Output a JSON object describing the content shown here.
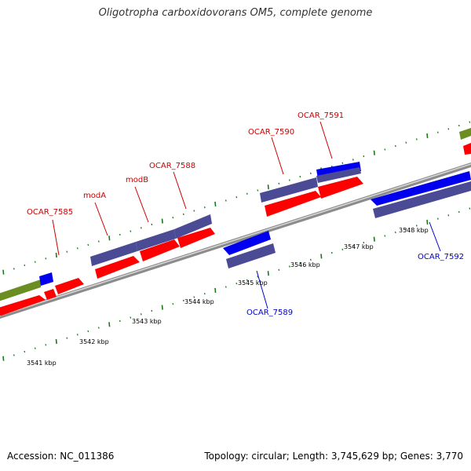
{
  "title": "Oligotropha carboxidovorans OM5, complete genome",
  "footer": {
    "accession": "Accession: NC_011386",
    "summary": "Topology: circular; Length: 3,745,629 bp; Genes: 3,770"
  },
  "colors": {
    "background": "#ffffff",
    "forward_label": "#cc0000",
    "reverse_label": "#0000cc",
    "backbone": "#8c8c8c",
    "ruler_tick": "#1a7a1a",
    "cds": "#ff0000",
    "gene_forward": "#4a4a95",
    "gene_reverse": "#4a4a95",
    "rna_blue": "#0000ee",
    "olive": "#6b8e23"
  },
  "ruler": {
    "unit": "kbp",
    "labels": [
      "3541 kbp",
      "3542 kbp",
      "3543 kbp",
      "3544 kbp",
      "3545 kbp",
      "3546 kbp",
      "3547 kbp",
      "3548 kbp"
    ]
  },
  "gene_labels": [
    {
      "text": "OCAR_7585",
      "strand": "forward"
    },
    {
      "text": "modA",
      "strand": "forward"
    },
    {
      "text": "modB",
      "strand": "forward"
    },
    {
      "text": "OCAR_7588",
      "strand": "forward"
    },
    {
      "text": "OCAR_7590",
      "strand": "forward"
    },
    {
      "text": "OCAR_7591",
      "strand": "forward"
    },
    {
      "text": "OCAR_7589",
      "strand": "reverse"
    },
    {
      "text": "OCAR_7592",
      "strand": "reverse"
    }
  ]
}
